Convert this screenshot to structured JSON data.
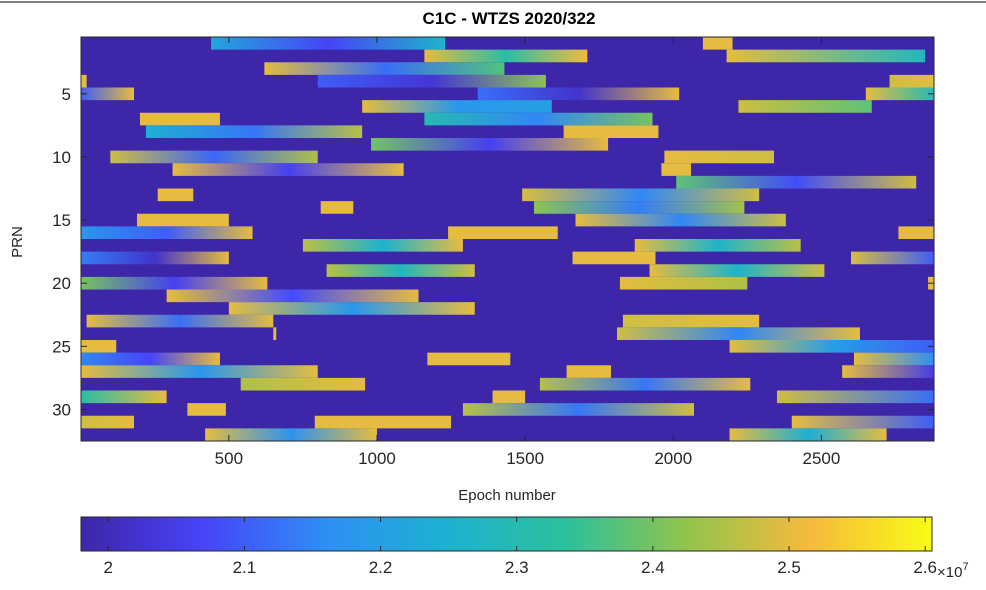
{
  "chart_data": {
    "type": "heatmap",
    "title": "C1C - WTZS 2020/322",
    "xlabel": "Epoch number",
    "ylabel": "PRN",
    "xlim": [
      1,
      2880
    ],
    "ylim": [
      0.5,
      32.5
    ],
    "y_reversed": true,
    "xticks": [
      500,
      1000,
      1500,
      2000,
      2500
    ],
    "yticks": [
      5,
      10,
      15,
      20,
      25,
      30
    ],
    "background_color": "#3e26a8",
    "colorbar": {
      "location": "south",
      "clim": [
        19800000,
        26050000
      ],
      "tick_values": [
        20000000,
        21000000,
        22000000,
        23000000,
        24000000,
        25000000,
        26000000
      ],
      "tick_labels": [
        "2",
        "2.1",
        "2.2",
        "2.3",
        "2.4",
        "2.5",
        "2.6"
      ],
      "exponent_label": "×10",
      "exponent_power": "7"
    },
    "colormap_name": "parula",
    "colormap_stops": [
      "#3e26a8",
      "#4743f8",
      "#2f8ef5",
      "#1cb2d0",
      "#2dc09c",
      "#93c44b",
      "#f6ba3d",
      "#f9fb15"
    ],
    "passes": [
      {
        "prn": 1,
        "start": 440,
        "end": 1230,
        "v0": 22200000,
        "v1": 22600000,
        "mid": 20700000
      },
      {
        "prn": 1,
        "start": 2100,
        "end": 2200,
        "v0": 25000000,
        "v1": 25000000
      },
      {
        "prn": 2,
        "start": 1160,
        "end": 1710,
        "v0": 25000000,
        "v1": 25100000,
        "mid": 23200000
      },
      {
        "prn": 2,
        "start": 2180,
        "end": 2850,
        "v0": 25000000,
        "v1": 22800000
      },
      {
        "prn": 3,
        "start": 620,
        "end": 1430,
        "v0": 25000000,
        "v1": 23700000,
        "mid": 21200000
      },
      {
        "prn": 4,
        "start": 1,
        "end": 20,
        "v0": 25000000,
        "v1": 25000000
      },
      {
        "prn": 4,
        "start": 800,
        "end": 1570,
        "v0": 21000000,
        "v1": 24200000,
        "mid": 20300000
      },
      {
        "prn": 4,
        "start": 2730,
        "end": 2880,
        "v0": 24800000,
        "v1": 25000000
      },
      {
        "prn": 5,
        "start": 1,
        "end": 180,
        "v0": 21000000,
        "v1": 25000000
      },
      {
        "prn": 5,
        "start": 1340,
        "end": 2020,
        "v0": 21200000,
        "v1": 25000000,
        "mid": 20200000
      },
      {
        "prn": 5,
        "start": 2650,
        "end": 2880,
        "v0": 25000000,
        "v1": 23000000
      },
      {
        "prn": 6,
        "start": 950,
        "end": 1590,
        "v0": 25000000,
        "v1": 22000000,
        "mid": 21800000
      },
      {
        "prn": 6,
        "start": 2220,
        "end": 2670,
        "v0": 24800000,
        "v1": 23800000
      },
      {
        "prn": 7,
        "start": 200,
        "end": 470,
        "v0": 25000000,
        "v1": 25000000
      },
      {
        "prn": 7,
        "start": 1160,
        "end": 1930,
        "v0": 23000000,
        "v1": 24000000,
        "mid": 21500000
      },
      {
        "prn": 8,
        "start": 220,
        "end": 950,
        "v0": 22400000,
        "v1": 24600000,
        "mid": 21300000
      },
      {
        "prn": 8,
        "start": 1630,
        "end": 1950,
        "v0": 25000000,
        "v1": 25000000
      },
      {
        "prn": 9,
        "start": 980,
        "end": 1780,
        "v0": 24000000,
        "v1": 25000000,
        "mid": 20600000
      },
      {
        "prn": 10,
        "start": 100,
        "end": 800,
        "v0": 24800000,
        "v1": 24500000,
        "mid": 21100000
      },
      {
        "prn": 10,
        "start": 1970,
        "end": 2340,
        "v0": 25000000,
        "v1": 24800000
      },
      {
        "prn": 11,
        "start": 310,
        "end": 1090,
        "v0": 25000000,
        "v1": 25000000,
        "mid": 20600000
      },
      {
        "prn": 11,
        "start": 1960,
        "end": 2060,
        "v0": 25000000,
        "v1": 25000000
      },
      {
        "prn": 12,
        "start": 2010,
        "end": 2820,
        "v0": 23800000,
        "v1": 24800000,
        "mid": 20800000
      },
      {
        "prn": 13,
        "start": 260,
        "end": 380,
        "v0": 25000000,
        "v1": 25000000
      },
      {
        "prn": 13,
        "start": 1490,
        "end": 2290,
        "v0": 24900000,
        "v1": 24800000,
        "mid": 21500000
      },
      {
        "prn": 14,
        "start": 810,
        "end": 920,
        "v0": 25000000,
        "v1": 25000000
      },
      {
        "prn": 14,
        "start": 1530,
        "end": 2240,
        "v0": 24200000,
        "v1": 24400000,
        "mid": 21400000
      },
      {
        "prn": 15,
        "start": 190,
        "end": 500,
        "v0": 25000000,
        "v1": 25000000
      },
      {
        "prn": 15,
        "start": 1670,
        "end": 2380,
        "v0": 25000000,
        "v1": 24800000,
        "mid": 21500000
      },
      {
        "prn": 16,
        "start": 1,
        "end": 580,
        "v0": 21800000,
        "v1": 25000000,
        "mid": 21000000
      },
      {
        "prn": 16,
        "start": 1240,
        "end": 1610,
        "v0": 25000000,
        "v1": 25000000
      },
      {
        "prn": 16,
        "start": 2760,
        "end": 2880,
        "v0": 25000000,
        "v1": 25000000
      },
      {
        "prn": 17,
        "start": 750,
        "end": 1290,
        "v0": 24600000,
        "v1": 25000000,
        "mid": 22500000
      },
      {
        "prn": 17,
        "start": 1870,
        "end": 2430,
        "v0": 25000000,
        "v1": 24600000,
        "mid": 22600000
      },
      {
        "prn": 18,
        "start": 1,
        "end": 500,
        "v0": 21400000,
        "v1": 25000000,
        "mid": 20200000
      },
      {
        "prn": 18,
        "start": 1660,
        "end": 1940,
        "v0": 25000000,
        "v1": 25000000
      },
      {
        "prn": 18,
        "start": 2600,
        "end": 2880,
        "v0": 24900000,
        "v1": 21000000
      },
      {
        "prn": 19,
        "start": 830,
        "end": 1330,
        "v0": 24600000,
        "v1": 24800000,
        "mid": 22800000
      },
      {
        "prn": 19,
        "start": 1920,
        "end": 2510,
        "v0": 25000000,
        "v1": 24800000,
        "mid": 22600000
      },
      {
        "prn": 20,
        "start": 1,
        "end": 630,
        "v0": 24000000,
        "v1": 25000000,
        "mid": 20600000
      },
      {
        "prn": 20,
        "start": 1820,
        "end": 2250,
        "v0": 25000000,
        "v1": 24500000
      },
      {
        "prn": 20,
        "start": 2860,
        "end": 2880,
        "v0": 25000000,
        "v1": 25000000
      },
      {
        "prn": 21,
        "start": 290,
        "end": 1140,
        "v0": 25000000,
        "v1": 25000000,
        "mid": 20800000
      },
      {
        "prn": 22,
        "start": 500,
        "end": 1330,
        "v0": 25000000,
        "v1": 25000000,
        "mid": 21800000
      },
      {
        "prn": 23,
        "start": 20,
        "end": 650,
        "v0": 25000000,
        "v1": 25000000,
        "mid": 21200000
      },
      {
        "prn": 23,
        "start": 1830,
        "end": 2290,
        "v0": 24800000,
        "v1": 25000000
      },
      {
        "prn": 24,
        "start": 650,
        "end": 660,
        "v0": 25000000,
        "v1": 25000000
      },
      {
        "prn": 24,
        "start": 1810,
        "end": 2630,
        "v0": 24800000,
        "v1": 25000000,
        "mid": 21500000
      },
      {
        "prn": 25,
        "start": 1,
        "end": 120,
        "v0": 25000000,
        "v1": 25000000
      },
      {
        "prn": 25,
        "start": 2190,
        "end": 2880,
        "v0": 25000000,
        "v1": 21000000,
        "mid": 22000000
      },
      {
        "prn": 26,
        "start": 1,
        "end": 470,
        "v0": 21500000,
        "v1": 25000000,
        "mid": 20700000
      },
      {
        "prn": 26,
        "start": 1170,
        "end": 1450,
        "v0": 25000000,
        "v1": 25000000
      },
      {
        "prn": 26,
        "start": 2610,
        "end": 2880,
        "v0": 25000000,
        "v1": 21600000
      },
      {
        "prn": 27,
        "start": 1,
        "end": 800,
        "v0": 25000000,
        "v1": 25000000,
        "mid": 21800000
      },
      {
        "prn": 27,
        "start": 1640,
        "end": 1790,
        "v0": 25000000,
        "v1": 25000000
      },
      {
        "prn": 27,
        "start": 2570,
        "end": 2880,
        "v0": 25000000,
        "v1": 20500000
      },
      {
        "prn": 28,
        "start": 540,
        "end": 960,
        "v0": 24500000,
        "v1": 25000000
      },
      {
        "prn": 28,
        "start": 1550,
        "end": 2260,
        "v0": 24600000,
        "v1": 25000000,
        "mid": 21300000
      },
      {
        "prn": 29,
        "start": 1,
        "end": 290,
        "v0": 23200000,
        "v1": 25000000
      },
      {
        "prn": 29,
        "start": 1390,
        "end": 1500,
        "v0": 25000000,
        "v1": 25000000
      },
      {
        "prn": 29,
        "start": 2350,
        "end": 2880,
        "v0": 24800000,
        "v1": 21200000
      },
      {
        "prn": 30,
        "start": 360,
        "end": 490,
        "v0": 25000000,
        "v1": 25000000
      },
      {
        "prn": 30,
        "start": 1290,
        "end": 2070,
        "v0": 24600000,
        "v1": 24800000,
        "mid": 21300000
      },
      {
        "prn": 31,
        "start": 1,
        "end": 180,
        "v0": 24800000,
        "v1": 25000000
      },
      {
        "prn": 31,
        "start": 790,
        "end": 1250,
        "v0": 25000000,
        "v1": 25000000
      },
      {
        "prn": 31,
        "start": 2400,
        "end": 2880,
        "v0": 25000000,
        "v1": 21000000
      },
      {
        "prn": 32,
        "start": 420,
        "end": 1000,
        "v0": 25000000,
        "v1": 25000000,
        "mid": 21700000
      },
      {
        "prn": 32,
        "start": 2190,
        "end": 2720,
        "v0": 25000000,
        "v1": 25000000,
        "mid": 22400000
      }
    ]
  }
}
